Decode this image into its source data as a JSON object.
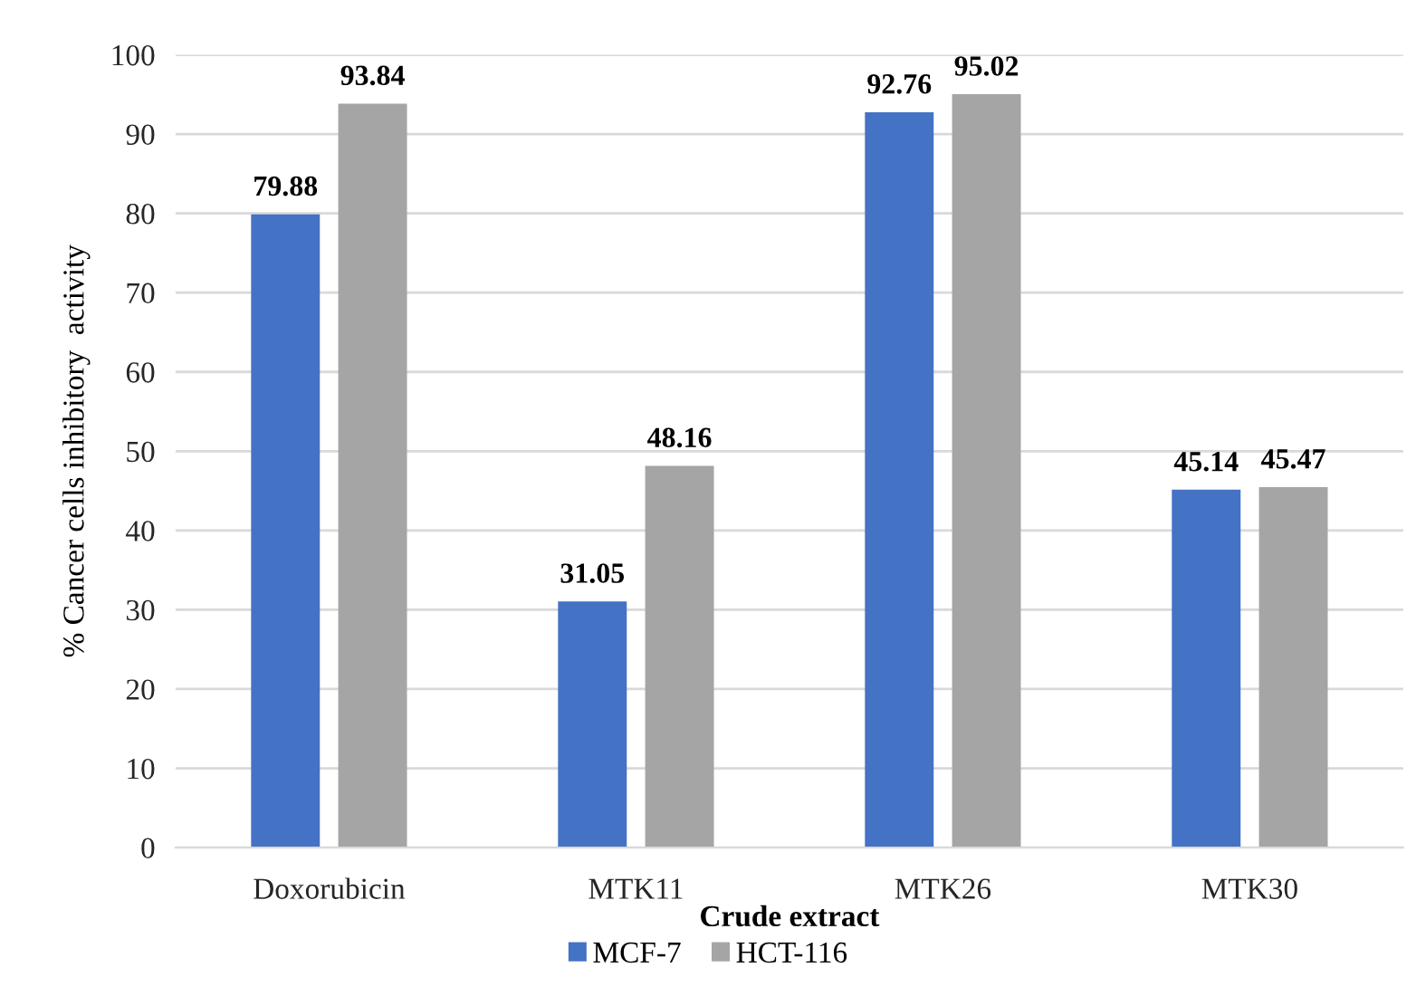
{
  "chart_data": {
    "type": "bar",
    "xlabel": "Crude extract",
    "ylabel": "% Cancer cells inhibitory  activity",
    "categories": [
      "Doxorubicin",
      "MTK11",
      "MTK26",
      "MTK30"
    ],
    "series": [
      {
        "name": "MCF-7",
        "color": "#4472c4",
        "values": [
          79.88,
          31.05,
          92.76,
          45.14
        ]
      },
      {
        "name": "HCT-116",
        "color": "#a5a5a5",
        "values": [
          93.84,
          48.16,
          95.02,
          45.47
        ]
      }
    ],
    "ylim": [
      0,
      100
    ],
    "yticks": [
      0,
      10,
      20,
      30,
      40,
      50,
      60,
      70,
      80,
      90,
      100
    ],
    "data_labels": true,
    "grid": "y",
    "legend": "bottom"
  }
}
